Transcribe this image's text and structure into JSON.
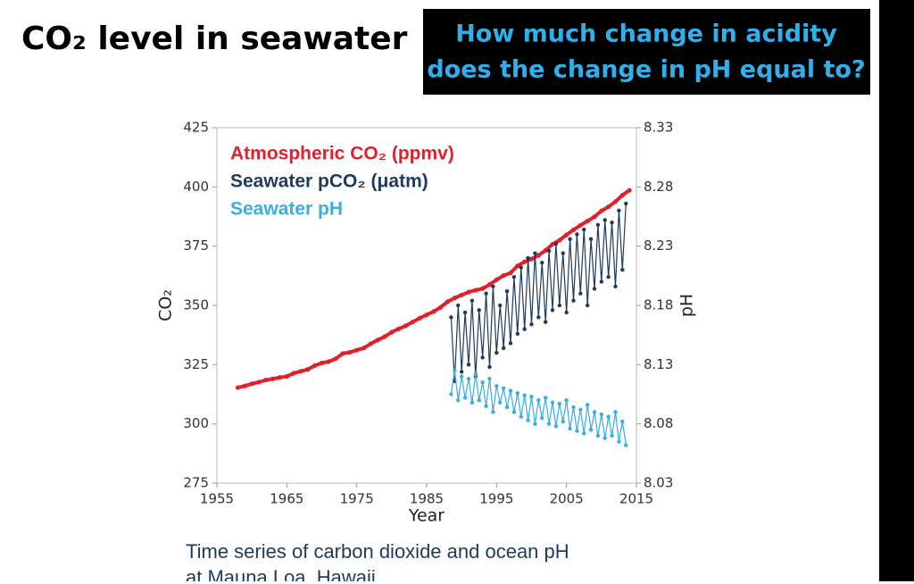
{
  "slide": {
    "title": "CO₂ level in seawater",
    "question": [
      "How much change in acidity",
      "does the change in pH equal to?"
    ],
    "caption": [
      "Time series of carbon dioxide and ocean pH",
      "at Mauna Loa, Hawaii"
    ]
  },
  "chart_data": {
    "type": "line",
    "xlabel": "Year",
    "ylabel": "CO₂",
    "y2label": "pH",
    "xlim": [
      1955,
      2015
    ],
    "xticks": [
      1955,
      1965,
      1975,
      1985,
      1995,
      2005,
      2015
    ],
    "ylim": [
      275,
      425
    ],
    "yticks": [
      275,
      300,
      325,
      350,
      375,
      400,
      425
    ],
    "y2lim": [
      8.03,
      8.33
    ],
    "y2ticks": [
      8.03,
      8.08,
      8.13,
      8.18,
      8.23,
      8.28,
      8.33
    ],
    "legend": "upper left",
    "series": [
      {
        "name": "Atmospheric CO₂ (ppmv)",
        "color": "#e0202a",
        "x": [
          1958,
          1959,
          1960,
          1961,
          1962,
          1963,
          1964,
          1965,
          1966,
          1967,
          1968,
          1969,
          1970,
          1971,
          1972,
          1973,
          1974,
          1975,
          1976,
          1977,
          1978,
          1979,
          1980,
          1981,
          1982,
          1983,
          1984,
          1985,
          1986,
          1987,
          1988,
          1989,
          1990,
          1991,
          1992,
          1993,
          1994,
          1995,
          1996,
          1997,
          1998,
          1999,
          2000,
          2001,
          2002,
          2003,
          2004,
          2005,
          2006,
          2007,
          2008,
          2009,
          2010,
          2011,
          2012,
          2013,
          2014
        ],
        "values": [
          315.3,
          316,
          316.9,
          317.6,
          318.5,
          319,
          319.6,
          320,
          321.4,
          322.2,
          323,
          324.6,
          325.7,
          326.3,
          327.5,
          329.7,
          330.2,
          331.1,
          332,
          333.8,
          335.4,
          336.8,
          338.7,
          340.1,
          341.4,
          343,
          344.6,
          346,
          347.4,
          349.2,
          351.6,
          353.1,
          354.4,
          355.6,
          356.4,
          357.1,
          358.8,
          360.8,
          362.6,
          363.7,
          366.7,
          368.4,
          369.6,
          371.1,
          373.2,
          375.8,
          377.5,
          379.8,
          381.9,
          383.8,
          385.6,
          387.4,
          389.9,
          391.6,
          393.8,
          396.5,
          398.6
        ]
      },
      {
        "name": "Seawater pCO₂ (μatm)",
        "color": "#1f3a5f",
        "x": [
          1988.5,
          1989,
          1989.5,
          1990,
          1990.5,
          1991,
          1991.5,
          1992,
          1992.5,
          1993,
          1993.5,
          1994,
          1994.5,
          1995,
          1995.5,
          1996,
          1996.5,
          1997,
          1997.5,
          1998,
          1998.5,
          1999,
          1999.5,
          2000,
          2000.5,
          2001,
          2001.5,
          2002,
          2002.5,
          2003,
          2003.5,
          2004,
          2004.5,
          2005,
          2005.5,
          2006,
          2006.5,
          2007,
          2007.5,
          2008,
          2008.5,
          2009,
          2009.5,
          2010,
          2010.5,
          2011,
          2011.5,
          2012,
          2012.5,
          2013,
          2013.5
        ],
        "values": [
          345,
          318,
          350,
          322,
          347,
          325,
          352,
          320,
          348,
          328,
          355,
          324,
          358,
          330,
          350,
          332,
          356,
          334,
          362,
          338,
          366,
          340,
          370,
          342,
          372,
          345,
          368,
          343,
          373,
          348,
          376,
          350,
          372,
          347,
          378,
          352,
          380,
          355,
          382,
          350,
          378,
          357,
          384,
          360,
          386,
          362,
          385,
          358,
          390,
          365,
          393
        ]
      },
      {
        "name": "Seawater pH",
        "color": "#3aaee0",
        "axis": "y2",
        "x": [
          1988.5,
          1989,
          1989.5,
          1990,
          1990.5,
          1991,
          1991.5,
          1992,
          1992.5,
          1993,
          1993.5,
          1994,
          1994.5,
          1995,
          1995.5,
          1996,
          1996.5,
          1997,
          1997.5,
          1998,
          1998.5,
          1999,
          1999.5,
          2000,
          2000.5,
          2001,
          2001.5,
          2002,
          2002.5,
          2003,
          2003.5,
          2004,
          2004.5,
          2005,
          2005.5,
          2006,
          2006.5,
          2007,
          2007.5,
          2008,
          2008.5,
          2009,
          2009.5,
          2010,
          2010.5,
          2011,
          2011.5,
          2012,
          2012.5,
          2013,
          2013.5
        ],
        "values": [
          8.105,
          8.125,
          8.1,
          8.12,
          8.102,
          8.118,
          8.098,
          8.122,
          8.1,
          8.115,
          8.095,
          8.118,
          8.09,
          8.112,
          8.098,
          8.11,
          8.094,
          8.108,
          8.09,
          8.106,
          8.086,
          8.104,
          8.083,
          8.103,
          8.08,
          8.1,
          8.085,
          8.102,
          8.08,
          8.098,
          8.078,
          8.097,
          8.082,
          8.1,
          8.076,
          8.094,
          8.074,
          8.092,
          8.072,
          8.096,
          8.075,
          8.09,
          8.07,
          8.088,
          8.068,
          8.086,
          8.07,
          8.09,
          8.065,
          8.082,
          8.062
        ]
      }
    ]
  }
}
